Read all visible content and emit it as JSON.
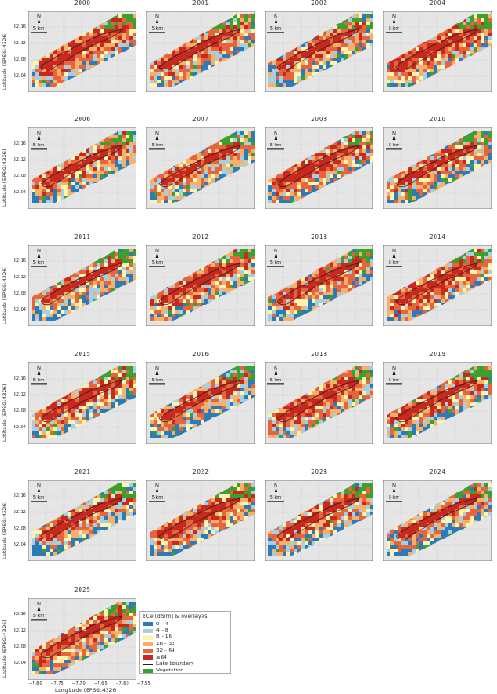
{
  "panels": [
    {
      "year": "2000"
    },
    {
      "year": "2001"
    },
    {
      "year": "2002"
    },
    {
      "year": "2004"
    },
    {
      "year": "2006"
    },
    {
      "year": "2007"
    },
    {
      "year": "2008"
    },
    {
      "year": "2010"
    },
    {
      "year": "2011"
    },
    {
      "year": "2012"
    },
    {
      "year": "2013"
    },
    {
      "year": "2014"
    },
    {
      "year": "2015"
    },
    {
      "year": "2016"
    },
    {
      "year": "2018"
    },
    {
      "year": "2019"
    },
    {
      "year": "2021"
    },
    {
      "year": "2022"
    },
    {
      "year": "2023"
    },
    {
      "year": "2024"
    },
    {
      "year": "2025"
    }
  ],
  "map": {
    "north_label": "N",
    "scale_label": "5 km",
    "y_axis_label": "Latitude (EPSG:4326)",
    "x_axis_label": "Longitude (EPSG:4326)",
    "y_ticks": [
      "32.16",
      "32.12",
      "32.08",
      "32.04"
    ],
    "x_ticks": [
      "−7.80",
      "−7.75",
      "−7.70",
      "−7.65",
      "−7.60",
      "−7.55"
    ]
  },
  "legend": {
    "title": "ECe (dS/m) & overlayes",
    "items": [
      {
        "label": "0 – 4",
        "color": "#2b7bba",
        "kind": "swatch"
      },
      {
        "label": "4 – 8",
        "color": "#a6cfe4",
        "kind": "swatch"
      },
      {
        "label": "8 – 16",
        "color": "#fff3b0",
        "kind": "swatch"
      },
      {
        "label": "16 – 32",
        "color": "#f6b06a",
        "kind": "swatch"
      },
      {
        "label": "32 – 64",
        "color": "#e8643c",
        "kind": "swatch"
      },
      {
        "label": "≥64",
        "color": "#c8281e",
        "kind": "swatch"
      },
      {
        "label": "Lake boundary",
        "color": "#222222",
        "kind": "line"
      },
      {
        "label": "Vegetation",
        "color": "#3aa02e",
        "kind": "swatch"
      }
    ]
  },
  "colors": {
    "plot_bg": "#e5e5e5",
    "ece_0_4": "#2b7bba",
    "ece_4_8": "#a6cfe4",
    "ece_8_16": "#fff3b0",
    "ece_16_32": "#f6b06a",
    "ece_32_64": "#e8643c",
    "ece_64": "#c8281e",
    "vegetation": "#3aa02e",
    "lake_boundary": "#222222"
  }
}
